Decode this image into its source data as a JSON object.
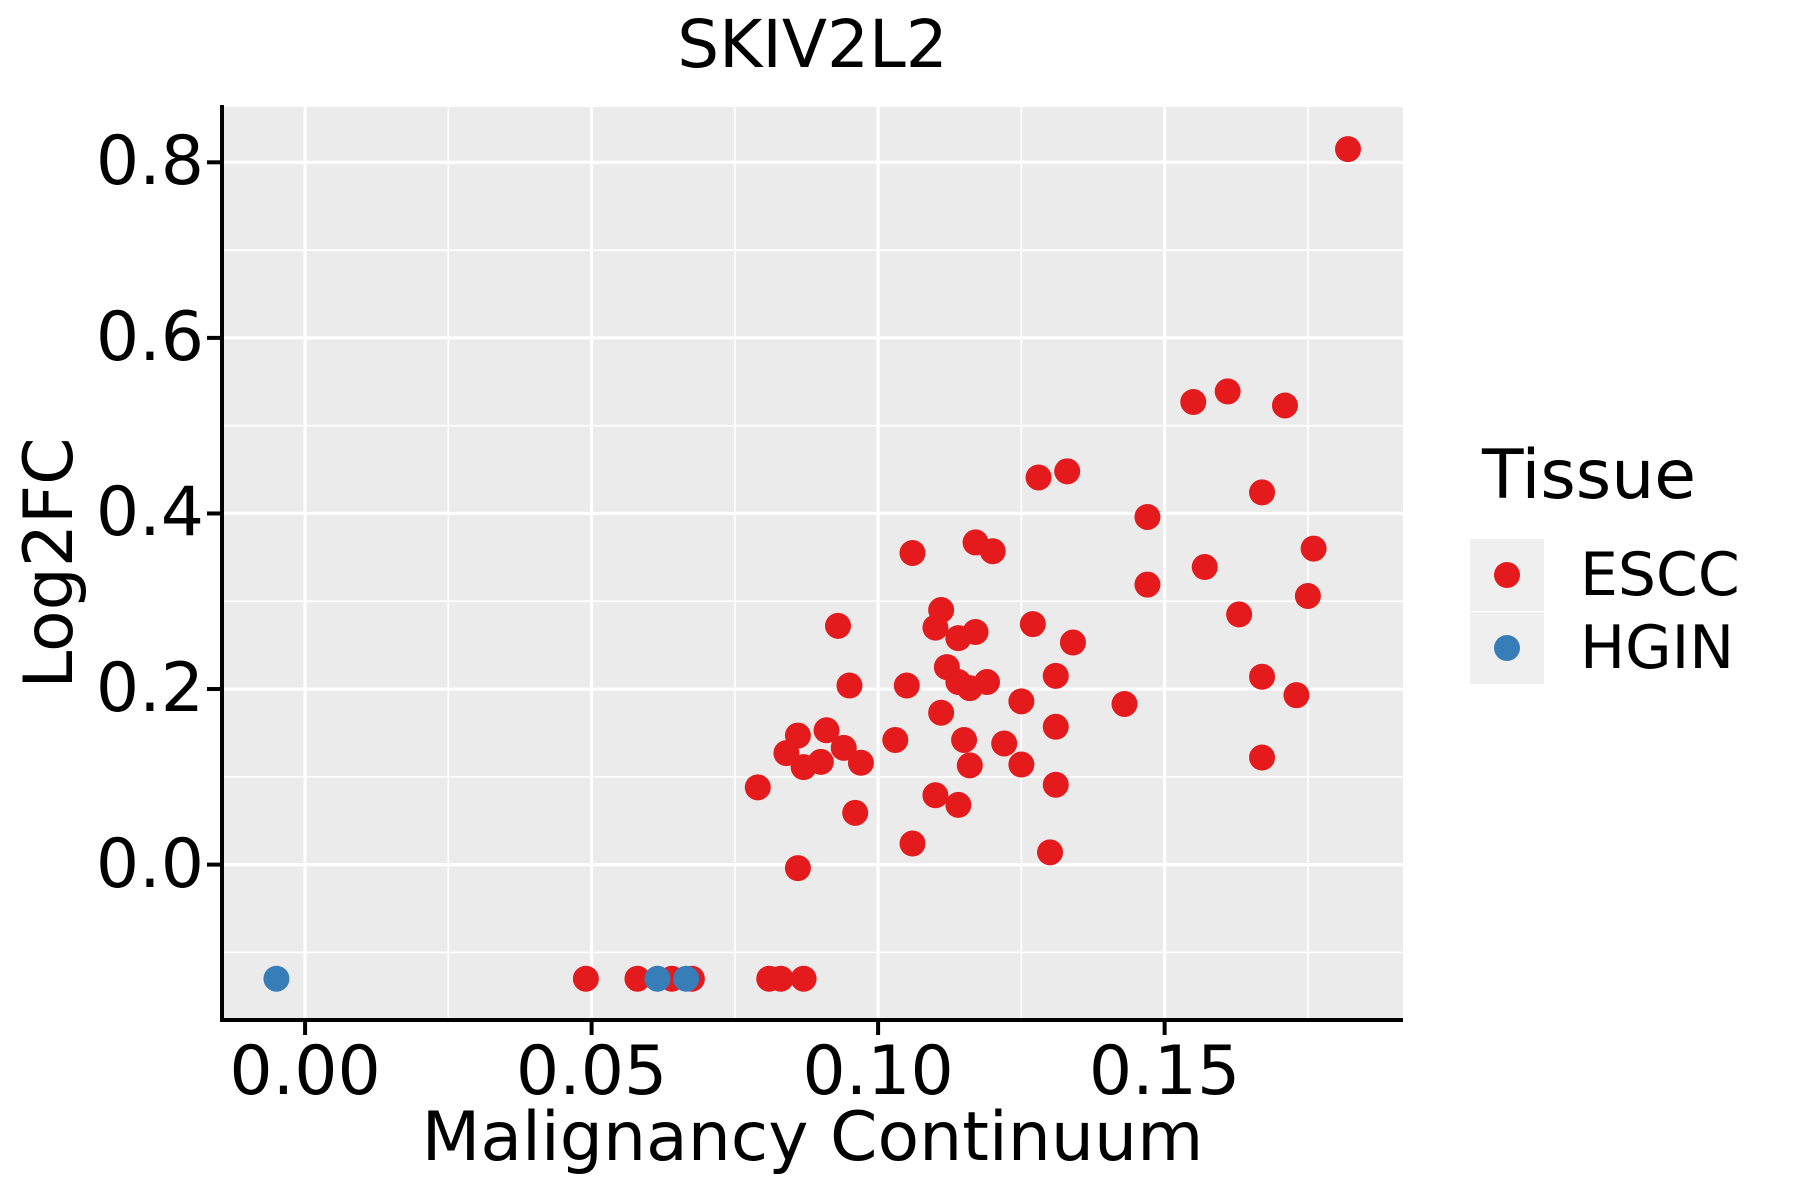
{
  "chart_data": {
    "type": "scatter",
    "title": "SKIV2L2",
    "xlabel": "Malignancy Continuum",
    "ylabel": "Log2FC",
    "xlim": [
      -0.0145,
      0.1916
    ],
    "ylim": [
      -0.177,
      0.863
    ],
    "x_ticks": {
      "values": [
        0,
        0.05,
        0.1,
        0.15
      ],
      "labels": [
        "0.00",
        "0.05",
        "0.10",
        "0.15"
      ],
      "minor": [
        0.025,
        0.075,
        0.125,
        0.175
      ]
    },
    "y_ticks": {
      "values": [
        0,
        0.2,
        0.4,
        0.6,
        0.8
      ],
      "labels": [
        "0.0",
        "0.2",
        "0.4",
        "0.6",
        "0.8"
      ],
      "minor": [
        -0.1,
        0.1,
        0.3,
        0.5,
        0.7
      ]
    },
    "style": {
      "panel_background": "#EBEBEB",
      "gridline_color": "#FFFFFF",
      "axis_color": "#000000",
      "legend_key_background": "#EFEFEF"
    },
    "legend": {
      "title": "Tissue",
      "position": "right",
      "entries": [
        {
          "label": "ESCC",
          "color": "#E41A1C"
        },
        {
          "label": "HGIN",
          "color": "#377EB8"
        }
      ]
    },
    "series": [
      {
        "name": "ESCC",
        "color": "#E41A1C",
        "points": [
          [
            0.182,
            0.815
          ],
          [
            0.161,
            0.539
          ],
          [
            0.155,
            0.527
          ],
          [
            0.171,
            0.523
          ],
          [
            0.133,
            0.448
          ],
          [
            0.128,
            0.441
          ],
          [
            0.167,
            0.424
          ],
          [
            0.147,
            0.396
          ],
          [
            0.117,
            0.367
          ],
          [
            0.176,
            0.36
          ],
          [
            0.12,
            0.357
          ],
          [
            0.106,
            0.355
          ],
          [
            0.157,
            0.339
          ],
          [
            0.147,
            0.319
          ],
          [
            0.175,
            0.306
          ],
          [
            0.111,
            0.29
          ],
          [
            0.163,
            0.285
          ],
          [
            0.127,
            0.274
          ],
          [
            0.093,
            0.272
          ],
          [
            0.11,
            0.27
          ],
          [
            0.117,
            0.265
          ],
          [
            0.114,
            0.258
          ],
          [
            0.134,
            0.253
          ],
          [
            0.112,
            0.225
          ],
          [
            0.131,
            0.215
          ],
          [
            0.167,
            0.214
          ],
          [
            0.114,
            0.208
          ],
          [
            0.119,
            0.208
          ],
          [
            0.095,
            0.204
          ],
          [
            0.105,
            0.204
          ],
          [
            0.116,
            0.201
          ],
          [
            0.173,
            0.193
          ],
          [
            0.125,
            0.186
          ],
          [
            0.143,
            0.183
          ],
          [
            0.111,
            0.173
          ],
          [
            0.131,
            0.157
          ],
          [
            0.091,
            0.153
          ],
          [
            0.086,
            0.147
          ],
          [
            0.103,
            0.142
          ],
          [
            0.115,
            0.142
          ],
          [
            0.122,
            0.138
          ],
          [
            0.094,
            0.133
          ],
          [
            0.084,
            0.127
          ],
          [
            0.167,
            0.122
          ],
          [
            0.09,
            0.117
          ],
          [
            0.097,
            0.116
          ],
          [
            0.125,
            0.114
          ],
          [
            0.116,
            0.113
          ],
          [
            0.087,
            0.111
          ],
          [
            0.131,
            0.091
          ],
          [
            0.079,
            0.088
          ],
          [
            0.11,
            0.079
          ],
          [
            0.114,
            0.068
          ],
          [
            0.096,
            0.059
          ],
          [
            0.106,
            0.024
          ],
          [
            0.13,
            0.014
          ],
          [
            0.086,
            -0.004
          ],
          [
            0.049,
            -0.13
          ],
          [
            0.058,
            -0.13
          ],
          [
            0.064,
            -0.13
          ],
          [
            0.0675,
            -0.13
          ],
          [
            0.081,
            -0.13
          ],
          [
            0.083,
            -0.13
          ],
          [
            0.087,
            -0.13
          ]
        ]
      },
      {
        "name": "HGIN",
        "color": "#377EB8",
        "points": [
          [
            -0.005,
            -0.13
          ],
          [
            0.0615,
            -0.13
          ],
          [
            0.0665,
            -0.13
          ]
        ]
      }
    ]
  }
}
